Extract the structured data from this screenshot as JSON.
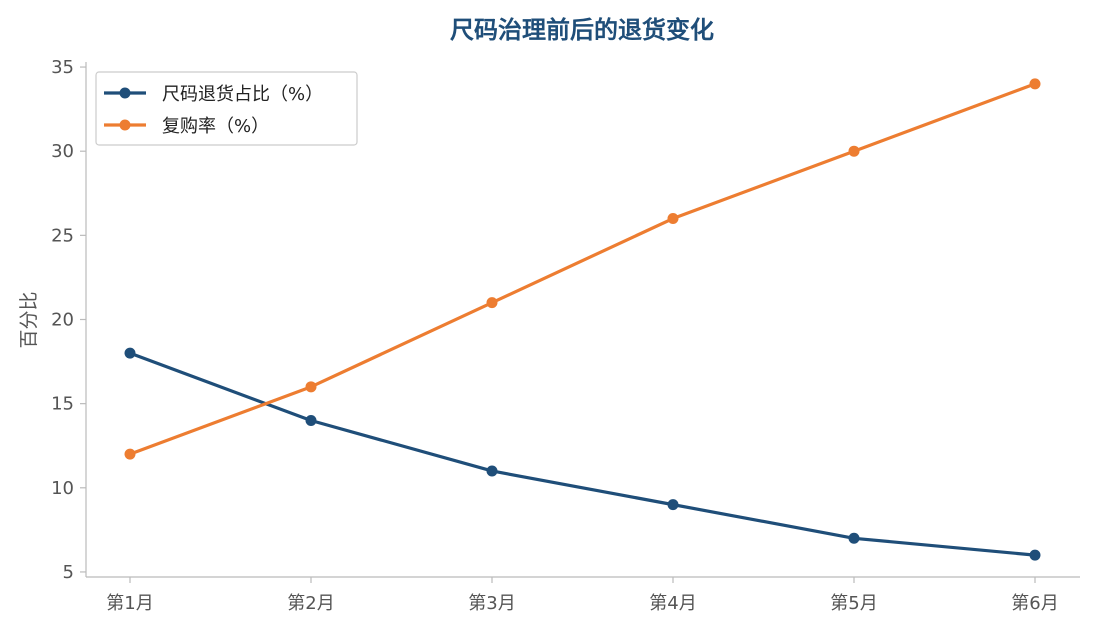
{
  "chart_data": {
    "type": "line",
    "title": "尺码治理前后的退货变化",
    "xlabel": "",
    "ylabel": "百分比",
    "categories": [
      "第1月",
      "第2月",
      "第3月",
      "第4月",
      "第5月",
      "第6月"
    ],
    "series": [
      {
        "name": "尺码退货占比（%）",
        "values": [
          18,
          14,
          11,
          9,
          7,
          6
        ],
        "color": "#1f4e79"
      },
      {
        "name": "复购率（%）",
        "values": [
          12,
          16,
          21,
          26,
          30,
          34
        ],
        "color": "#ed7d31"
      }
    ],
    "ylim": [
      4.7,
      35.3
    ],
    "yticks": [
      5,
      10,
      15,
      20,
      25,
      30,
      35
    ],
    "grid": false,
    "legend_position": "top-left",
    "title_color": "#1f4e79",
    "axis_color": "#bbbbbb"
  }
}
